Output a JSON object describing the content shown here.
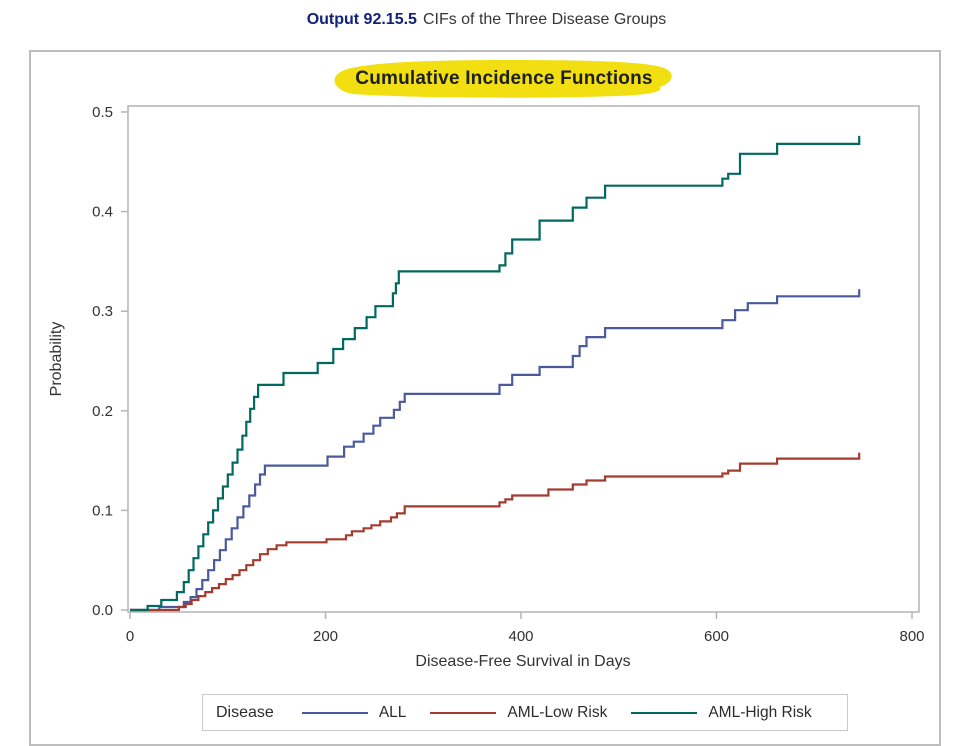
{
  "header": {
    "prefix": "Output 92.15.5",
    "title": "CIFs of the Three Disease Groups"
  },
  "colors": {
    "header_prefix": "#112277",
    "highlight": "#f2df11",
    "frame": "#b4b4b4",
    "tick_text": "#333333",
    "series_all": "#4a5a9c",
    "series_aml_low": "#a33b2e",
    "series_aml_high": "#01695f"
  },
  "chart_data": {
    "type": "line",
    "subtype": "step-after",
    "title": "Cumulative Incidence Functions",
    "xlabel": "Disease-Free Survival in Days",
    "ylabel": "Probability",
    "xlim": [
      0,
      800
    ],
    "ylim": [
      0.0,
      0.5
    ],
    "grid": false,
    "x_ticks": [
      "0",
      "200",
      "400",
      "600",
      "800"
    ],
    "y_ticks": [
      "0.0",
      "0.1",
      "0.2",
      "0.3",
      "0.4",
      "0.5"
    ],
    "legend": {
      "title": "Disease",
      "position": "bottom"
    },
    "series": [
      {
        "name": "ALL",
        "color": "#4a5a9c",
        "points": [
          [
            0,
            0
          ],
          [
            30,
            0.003
          ],
          [
            55,
            0.008
          ],
          [
            62,
            0.013
          ],
          [
            68,
            0.021
          ],
          [
            74,
            0.03
          ],
          [
            80,
            0.04
          ],
          [
            86,
            0.05
          ],
          [
            92,
            0.06
          ],
          [
            98,
            0.071
          ],
          [
            104,
            0.082
          ],
          [
            110,
            0.093
          ],
          [
            116,
            0.104
          ],
          [
            122,
            0.115
          ],
          [
            128,
            0.126
          ],
          [
            133,
            0.136
          ],
          [
            138,
            0.145
          ],
          [
            202,
            0.154
          ],
          [
            219,
            0.164
          ],
          [
            229,
            0.169
          ],
          [
            239,
            0.177
          ],
          [
            249,
            0.185
          ],
          [
            256,
            0.193
          ],
          [
            270,
            0.201
          ],
          [
            276,
            0.209
          ],
          [
            281,
            0.217
          ],
          [
            378,
            0.226
          ],
          [
            391,
            0.236
          ],
          [
            419,
            0.244
          ],
          [
            453,
            0.255
          ],
          [
            460,
            0.265
          ],
          [
            467,
            0.274
          ],
          [
            486,
            0.283
          ],
          [
            606,
            0.291
          ],
          [
            619,
            0.301
          ],
          [
            632,
            0.308
          ],
          [
            662,
            0.315
          ],
          [
            746,
            0.322
          ]
        ]
      },
      {
        "name": "AML-Low Risk",
        "color": "#a33b2e",
        "points": [
          [
            0,
            0
          ],
          [
            50,
            0.003
          ],
          [
            57,
            0.006
          ],
          [
            63,
            0.01
          ],
          [
            70,
            0.014
          ],
          [
            77,
            0.018
          ],
          [
            84,
            0.022
          ],
          [
            91,
            0.026
          ],
          [
            98,
            0.031
          ],
          [
            105,
            0.035
          ],
          [
            112,
            0.04
          ],
          [
            119,
            0.045
          ],
          [
            126,
            0.05
          ],
          [
            133,
            0.056
          ],
          [
            141,
            0.061
          ],
          [
            150,
            0.065
          ],
          [
            160,
            0.068
          ],
          [
            201,
            0.071
          ],
          [
            221,
            0.075
          ],
          [
            227,
            0.079
          ],
          [
            239,
            0.082
          ],
          [
            247,
            0.085
          ],
          [
            256,
            0.089
          ],
          [
            267,
            0.093
          ],
          [
            273,
            0.097
          ],
          [
            281,
            0.104
          ],
          [
            378,
            0.108
          ],
          [
            384,
            0.111
          ],
          [
            391,
            0.115
          ],
          [
            428,
            0.121
          ],
          [
            453,
            0.126
          ],
          [
            467,
            0.13
          ],
          [
            486,
            0.134
          ],
          [
            606,
            0.137
          ],
          [
            612,
            0.14
          ],
          [
            624,
            0.147
          ],
          [
            662,
            0.152
          ],
          [
            746,
            0.158
          ]
        ]
      },
      {
        "name": "AML-High Risk",
        "color": "#01695f",
        "points": [
          [
            0,
            0
          ],
          [
            18,
            0.004
          ],
          [
            32,
            0.01
          ],
          [
            48,
            0.018
          ],
          [
            55,
            0.028
          ],
          [
            60,
            0.04
          ],
          [
            65,
            0.052
          ],
          [
            70,
            0.064
          ],
          [
            75,
            0.076
          ],
          [
            80,
            0.088
          ],
          [
            85,
            0.1
          ],
          [
            90,
            0.112
          ],
          [
            95,
            0.124
          ],
          [
            100,
            0.136
          ],
          [
            105,
            0.148
          ],
          [
            110,
            0.161
          ],
          [
            115,
            0.175
          ],
          [
            119,
            0.189
          ],
          [
            123,
            0.202
          ],
          [
            127,
            0.214
          ],
          [
            131,
            0.226
          ],
          [
            157,
            0.238
          ],
          [
            192,
            0.248
          ],
          [
            208,
            0.262
          ],
          [
            218,
            0.272
          ],
          [
            230,
            0.283
          ],
          [
            242,
            0.294
          ],
          [
            251,
            0.305
          ],
          [
            269,
            0.318
          ],
          [
            272,
            0.328
          ],
          [
            275,
            0.34
          ],
          [
            378,
            0.346
          ],
          [
            384,
            0.358
          ],
          [
            391,
            0.372
          ],
          [
            419,
            0.391
          ],
          [
            453,
            0.404
          ],
          [
            467,
            0.414
          ],
          [
            486,
            0.426
          ],
          [
            606,
            0.433
          ],
          [
            612,
            0.438
          ],
          [
            624,
            0.458
          ],
          [
            662,
            0.468
          ],
          [
            746,
            0.476
          ]
        ]
      }
    ]
  }
}
